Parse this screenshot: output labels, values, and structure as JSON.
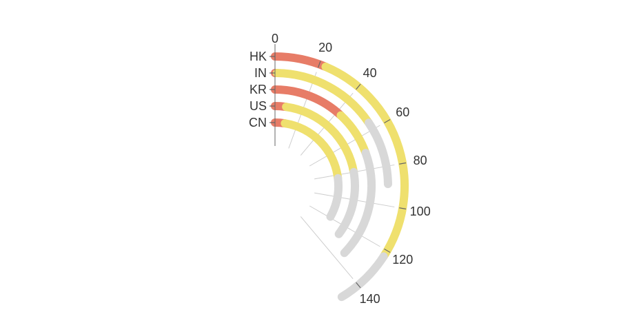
{
  "chart_data": {
    "type": "bar",
    "layout": "radial-stacked-polar-bar",
    "categories": [
      "HK",
      "IN",
      "KR",
      "US",
      "CN"
    ],
    "angle_axis": {
      "min": 0,
      "max": 180,
      "ticks": [
        0,
        20,
        40,
        60,
        80,
        100,
        120,
        140
      ],
      "tick_labels": [
        "0",
        "20",
        "40",
        "60",
        "80",
        "100",
        "120",
        "140"
      ]
    },
    "series": [
      {
        "color": "#e77c67",
        "values": [
          23,
          1,
          43,
          8,
          9
        ]
      },
      {
        "color": "#efe06e",
        "values": [
          100,
          55,
          27,
          72,
          74
        ]
      },
      {
        "color": "#d8d8d8",
        "values": [
          26,
          33,
          64,
          47,
          36
        ]
      }
    ],
    "legend": "none",
    "grid": true
  }
}
